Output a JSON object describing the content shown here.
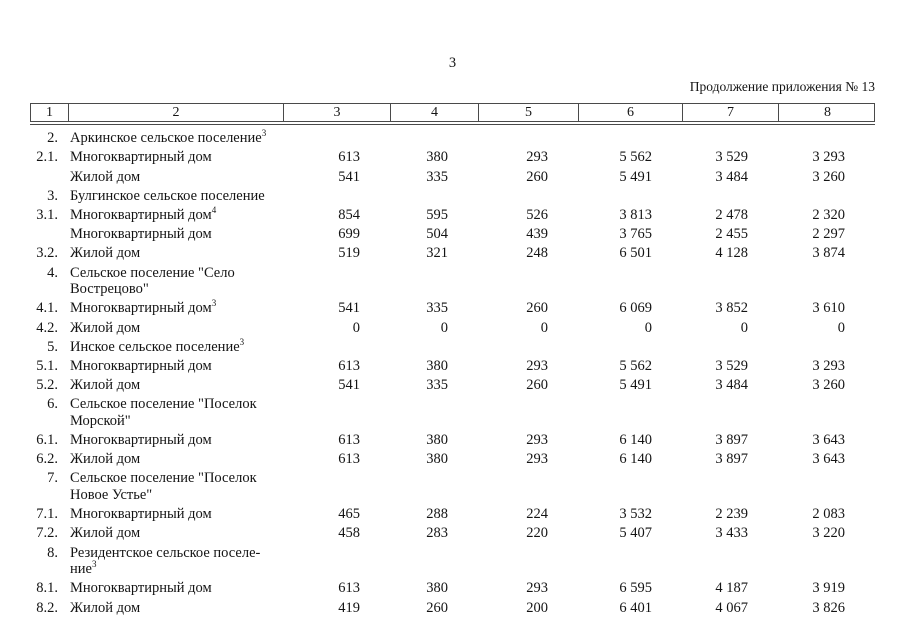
{
  "page": {
    "number": "3",
    "continuation": "Продолжение приложения № 13"
  },
  "table": {
    "column_headers": [
      "1",
      "2",
      "3",
      "4",
      "5",
      "6",
      "7",
      "8"
    ],
    "rows": [
      {
        "num": "2.",
        "name": "Аркинское сельское поселение",
        "sup": "3",
        "values": []
      },
      {
        "num": "2.1.",
        "name": "Многоквартирный дом",
        "values": [
          "613",
          "380",
          "293",
          "5 562",
          "3 529",
          "3 293"
        ]
      },
      {
        "num": "",
        "name": "Жилой дом",
        "values": [
          "541",
          "335",
          "260",
          "5 491",
          "3 484",
          "3 260"
        ]
      },
      {
        "num": "3.",
        "name": "Булгинское сельское поселение",
        "values": []
      },
      {
        "num": "3.1.",
        "name": "Многоквартирный дом",
        "sup": "4",
        "values": [
          "854",
          "595",
          "526",
          "3 813",
          "2 478",
          "2 320"
        ]
      },
      {
        "num": "",
        "name": "Многоквартирный дом",
        "values": [
          "699",
          "504",
          "439",
          "3 765",
          "2 455",
          "2 297"
        ]
      },
      {
        "num": "3.2.",
        "name": "Жилой дом",
        "values": [
          "519",
          "321",
          "248",
          "6 501",
          "4 128",
          "3 874"
        ]
      },
      {
        "num": "4.",
        "name": "Сельское поселение \"Село\nВострецово\"",
        "values": []
      },
      {
        "num": "4.1.",
        "name": "Многоквартирный дом",
        "sup": "3",
        "values": [
          "541",
          "335",
          "260",
          "6 069",
          "3 852",
          "3 610"
        ]
      },
      {
        "num": "4.2.",
        "name": "Жилой дом",
        "values": [
          "0",
          "0",
          "0",
          "0",
          "0",
          "0"
        ]
      },
      {
        "num": "5.",
        "name": "Инское сельское поселение",
        "sup": "3",
        "values": []
      },
      {
        "num": "5.1.",
        "name": "Многоквартирный дом",
        "values": [
          "613",
          "380",
          "293",
          "5 562",
          "3 529",
          "3 293"
        ]
      },
      {
        "num": "5.2.",
        "name": "Жилой дом",
        "values": [
          "541",
          "335",
          "260",
          "5 491",
          "3 484",
          "3 260"
        ]
      },
      {
        "num": "6.",
        "name": "Сельское поселение \"Поселок\nМорской\"",
        "values": []
      },
      {
        "num": "6.1.",
        "name": "Многоквартирный дом",
        "values": [
          "613",
          "380",
          "293",
          "6 140",
          "3 897",
          "3 643"
        ]
      },
      {
        "num": "6.2.",
        "name": "Жилой дом",
        "values": [
          "613",
          "380",
          "293",
          "6 140",
          "3 897",
          "3 643"
        ]
      },
      {
        "num": "7.",
        "name": "Сельское поселение \"Поселок\nНовое Устье\"",
        "values": []
      },
      {
        "num": "7.1.",
        "name": "Многоквартирный дом",
        "values": [
          "465",
          "288",
          "224",
          "3 532",
          "2 239",
          "2 083"
        ]
      },
      {
        "num": "7.2.",
        "name": "Жилой дом",
        "values": [
          "458",
          "283",
          "220",
          "5 407",
          "3 433",
          "3 220"
        ]
      },
      {
        "num": "8.",
        "name": "Резидентское сельское поселе-\nние",
        "sup": "3",
        "values": []
      },
      {
        "num": "8.1.",
        "name": "Многоквартирный дом",
        "values": [
          "613",
          "380",
          "293",
          "6 595",
          "4 187",
          "3 919"
        ]
      },
      {
        "num": "8.2.",
        "name": "Жилой дом",
        "values": [
          "419",
          "260",
          "200",
          "6 401",
          "4 067",
          "3 826"
        ]
      }
    ]
  }
}
